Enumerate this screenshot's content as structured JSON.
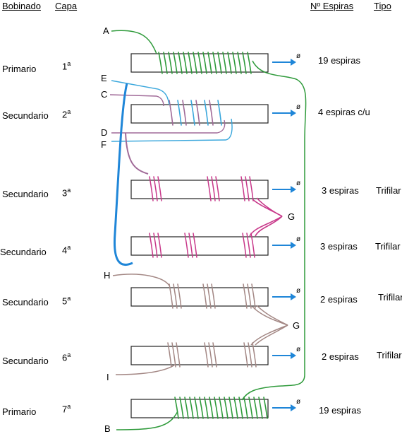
{
  "headers": {
    "bobinado": "Bobinado",
    "capa": "Capa",
    "espiras": "Nº Espiras",
    "tipo": "Tipo"
  },
  "rows": [
    {
      "bobinado": "Primario",
      "capa_num": "1",
      "capa_sup": "a",
      "espiras": "19 espiras",
      "tipo": ""
    },
    {
      "bobinado": "Secundario",
      "capa_num": "2",
      "capa_sup": "a",
      "espiras": "4 espiras c/u",
      "tipo": ""
    },
    {
      "bobinado": "Secundario",
      "capa_num": "3",
      "capa_sup": "a",
      "espiras": "3 espiras",
      "tipo": "Trifilar"
    },
    {
      "bobinado": "Secundario",
      "capa_num": "4",
      "capa_sup": "a",
      "espiras": "3 espiras",
      "tipo": "Trifilar"
    },
    {
      "bobinado": "Secundario",
      "capa_num": "5",
      "capa_sup": "a",
      "espiras": "2 espiras",
      "tipo": "Trifilar"
    },
    {
      "bobinado": "Secundario",
      "capa_num": "6",
      "capa_sup": "a",
      "espiras": "2 espiras",
      "tipo": "Trifilar"
    },
    {
      "bobinado": "Primario",
      "capa_num": "7",
      "capa_sup": "a",
      "espiras": "19 espiras",
      "tipo": ""
    }
  ],
  "terminals": [
    "A",
    "B",
    "C",
    "D",
    "E",
    "F",
    "G",
    "G",
    "H",
    "I"
  ],
  "arrow_symbol": "ø",
  "colors": {
    "primary_wire": "#2e9a3a",
    "blue_wire": "#3aa7dc",
    "mauve_wire": "#a06a98",
    "pink_wire": "#c8388a",
    "brown_wire": "#a38784",
    "strong_blue": "#1f86d8",
    "arrow": "#1f86d8"
  }
}
